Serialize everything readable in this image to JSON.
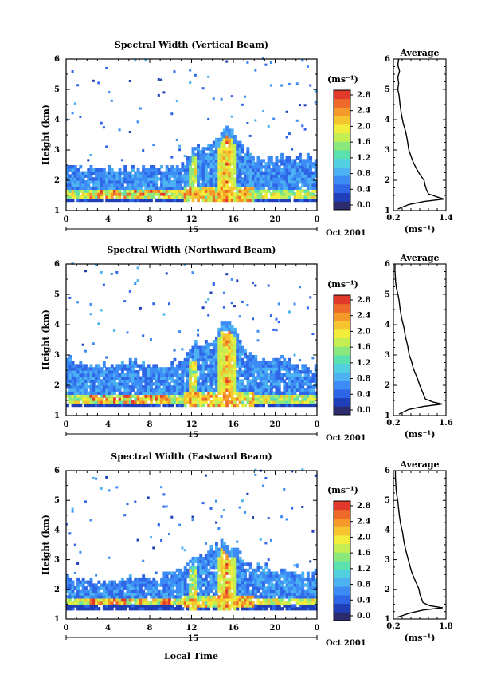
{
  "figure": {
    "xlabel": "Local Time",
    "date_label": "Oct 2001",
    "day_label": "15"
  },
  "colorbar_unit": "(ms⁻¹)",
  "avg_title": "Average",
  "avg_unit": "(ms⁻¹)",
  "colors": {
    "colormap": [
      "#2b2b6e",
      "#1f3fb8",
      "#2f66e8",
      "#3d8cf5",
      "#4cb2f2",
      "#52d0e0",
      "#5be0b0",
      "#8be87c",
      "#c4ee52",
      "#f2ec3a",
      "#f6c42e",
      "#f59a2a",
      "#ee6a2a",
      "#e23a2a"
    ]
  },
  "chart_data": [
    {
      "type": "heatmap",
      "title": "Spectral Width (Vertical Beam)",
      "ylabel": "Height (km)",
      "x_ticks": [
        "0",
        "4",
        "8",
        "12",
        "16",
        "20",
        "0"
      ],
      "y_ticks": [
        "1",
        "2",
        "3",
        "4",
        "5",
        "6"
      ],
      "xlim": [
        0,
        24
      ],
      "ylim": [
        1,
        6
      ],
      "colorbar": {
        "ticks": [
          "0.0",
          "0.4",
          "0.8",
          "1.2",
          "1.6",
          "2.0",
          "2.4",
          "2.8"
        ],
        "range": [
          0,
          2.8
        ]
      },
      "features": {
        "base_top": [
          2.45,
          2.35,
          2.35,
          2.4,
          2.35,
          2.3,
          2.35,
          2.4,
          2.35,
          2.4,
          2.4,
          2.45,
          3.0,
          3.1,
          3.2,
          3.7,
          3.5,
          3.0,
          2.7,
          2.6,
          2.7,
          2.75,
          2.7,
          2.7,
          2.65
        ],
        "peak_layer_height": 1.5,
        "plume_time": 15.2,
        "plume_top": 3.6
      },
      "average_profile": {
        "xlabel": "(ms⁻¹)",
        "x_ticks": [
          "0.2",
          "1.4"
        ],
        "xlim": [
          0.2,
          1.4
        ],
        "height": [
          1.05,
          1.2,
          1.3,
          1.38,
          1.45,
          1.55,
          1.7,
          1.85,
          2.0,
          2.2,
          2.4,
          2.6,
          2.8,
          3.0,
          3.3,
          3.6,
          3.9,
          4.2,
          4.5,
          4.8,
          5.0,
          5.2,
          5.4,
          5.6,
          5.8,
          6.0
        ],
        "value": [
          0.3,
          0.55,
          0.9,
          1.35,
          1.2,
          1.0,
          0.95,
          0.92,
          0.9,
          0.8,
          0.72,
          0.65,
          0.6,
          0.55,
          0.52,
          0.48,
          0.42,
          0.38,
          0.35,
          0.33,
          0.3,
          0.32,
          0.3,
          0.34,
          0.3,
          0.32
        ]
      }
    },
    {
      "type": "heatmap",
      "title": "Spectral Width (Northward Beam)",
      "ylabel": "Height (km)",
      "x_ticks": [
        "0",
        "4",
        "8",
        "12",
        "16",
        "20",
        "0"
      ],
      "y_ticks": [
        "1",
        "2",
        "3",
        "4",
        "5",
        "6"
      ],
      "xlim": [
        0,
        24
      ],
      "ylim": [
        1,
        6
      ],
      "colorbar": {
        "ticks": [
          "0.0",
          "0.4",
          "0.8",
          "1.2",
          "1.6",
          "2.0",
          "2.4",
          "2.8"
        ],
        "range": [
          0,
          2.8
        ]
      },
      "features": {
        "base_top": [
          2.85,
          2.7,
          2.6,
          2.6,
          2.6,
          2.65,
          2.7,
          2.7,
          2.6,
          2.6,
          2.7,
          2.8,
          3.3,
          3.3,
          3.5,
          4.1,
          3.8,
          3.1,
          2.8,
          2.8,
          2.9,
          2.8,
          2.6,
          2.5,
          2.5
        ],
        "peak_layer_height": 1.5,
        "plume_time": 15.3,
        "plume_top": 4.0
      },
      "average_profile": {
        "xlabel": "(ms⁻¹)",
        "x_ticks": [
          "0.2",
          "1.6"
        ],
        "xlim": [
          0.2,
          1.6
        ],
        "height": [
          1.05,
          1.2,
          1.3,
          1.38,
          1.45,
          1.55,
          1.7,
          1.85,
          2.0,
          2.2,
          2.4,
          2.6,
          2.8,
          3.0,
          3.3,
          3.6,
          3.9,
          4.2,
          4.5,
          4.8,
          5.0,
          5.2,
          5.4,
          5.6,
          5.8,
          6.0
        ],
        "value": [
          0.35,
          0.6,
          1.0,
          1.5,
          1.25,
          1.05,
          1.0,
          0.95,
          0.9,
          0.85,
          0.78,
          0.72,
          0.68,
          0.62,
          0.58,
          0.52,
          0.48,
          0.42,
          0.38,
          0.35,
          0.32,
          0.28,
          0.26,
          0.25,
          0.24,
          0.24
        ]
      }
    },
    {
      "type": "heatmap",
      "title": "Spectral Width (Eastward Beam)",
      "ylabel": "Height (km)",
      "x_ticks": [
        "0",
        "4",
        "8",
        "12",
        "16",
        "20",
        "0"
      ],
      "y_ticks": [
        "1",
        "2",
        "3",
        "4",
        "5",
        "6"
      ],
      "xlim": [
        0,
        24
      ],
      "ylim": [
        1,
        6
      ],
      "colorbar": {
        "ticks": [
          "0.0",
          "0.4",
          "0.8",
          "1.2",
          "1.6",
          "2.0",
          "2.4",
          "2.8"
        ],
        "range": [
          0,
          2.8
        ]
      },
      "features": {
        "base_top": [
          2.4,
          2.3,
          2.3,
          2.2,
          2.25,
          2.3,
          2.3,
          2.4,
          2.4,
          2.4,
          2.5,
          2.6,
          3.0,
          3.1,
          3.4,
          3.6,
          3.4,
          2.9,
          2.7,
          2.7,
          2.6,
          2.6,
          2.5,
          2.5,
          2.5
        ],
        "peak_layer_height": 1.55,
        "plume_time": 15.2,
        "plume_top": 3.6
      },
      "average_profile": {
        "xlabel": "(ms⁻¹)",
        "x_ticks": [
          "0.2",
          "1.8"
        ],
        "xlim": [
          0.2,
          1.8
        ],
        "height": [
          1.05,
          1.2,
          1.3,
          1.38,
          1.45,
          1.55,
          1.7,
          1.85,
          2.0,
          2.2,
          2.4,
          2.6,
          2.8,
          3.0,
          3.3,
          3.6,
          3.9,
          4.2,
          4.5,
          4.8,
          5.0,
          5.2,
          5.4,
          5.6,
          5.8,
          6.0
        ],
        "value": [
          0.3,
          0.7,
          1.1,
          1.7,
          1.3,
          1.1,
          1.05,
          1.0,
          0.98,
          0.9,
          0.82,
          0.75,
          0.7,
          0.65,
          0.58,
          0.52,
          0.48,
          0.42,
          0.38,
          0.35,
          0.33,
          0.3,
          0.28,
          0.27,
          0.26,
          0.26
        ]
      }
    }
  ]
}
